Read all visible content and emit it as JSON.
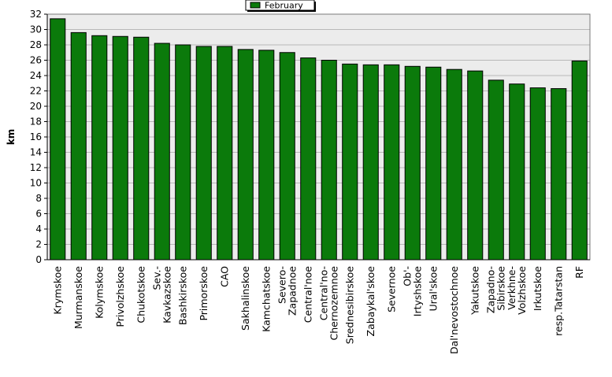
{
  "chart_data": {
    "type": "bar",
    "title": "",
    "xlabel": "",
    "ylabel": "km",
    "ylim": [
      0,
      32
    ],
    "ytick_step": 2,
    "grid": true,
    "legend_position": "top-center",
    "bar_color": "#0b7a0b",
    "plot_background": "#ececec",
    "categories": [
      "Krymskoe",
      "Murmanskoe",
      "Kolymskoe",
      "Privolzhskoe",
      "Chukotskoe",
      "Sev.-\nKavkazskoe",
      "Bashkirskoe",
      "Primorskoe",
      "CAO",
      "Sakhalinskoe",
      "Kamchatskoe",
      "Severo-\nZapadnoe",
      "Central'noe",
      "Central'no-\nChernozemnoe",
      "Srednesibirskoe",
      "Zabaykal'skoe",
      "Severnoe",
      "Ob'-\nIrtyshskoe",
      "Ural'skoe",
      "Dal'nevostochnoe",
      "Yakutskoe",
      "Zapadno-\nSibirskoe",
      "Verkhne-\nVolzhskoe",
      "Irkutskoe",
      "resp.Tatarstan",
      "RF"
    ],
    "series": [
      {
        "name": "February",
        "values": [
          31.4,
          29.6,
          29.2,
          29.1,
          29.0,
          28.2,
          28.0,
          27.8,
          27.8,
          27.4,
          27.3,
          27.0,
          26.3,
          26.0,
          25.5,
          25.4,
          25.4,
          25.2,
          25.1,
          24.8,
          24.6,
          23.4,
          22.9,
          22.4,
          22.3,
          25.9
        ]
      }
    ]
  }
}
